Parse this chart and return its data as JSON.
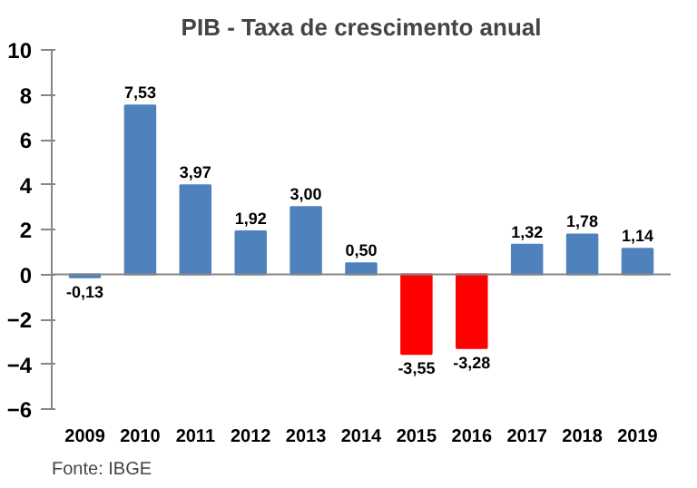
{
  "chart_data": {
    "type": "bar",
    "title": "PIB - Taxa de crescimento anual",
    "categories": [
      "2009",
      "2010",
      "2011",
      "2012",
      "2013",
      "2014",
      "2015",
      "2016",
      "2017",
      "2018",
      "2019"
    ],
    "values": [
      -0.13,
      7.53,
      3.97,
      1.92,
      3.0,
      0.5,
      -3.55,
      -3.28,
      1.32,
      1.78,
      1.14
    ],
    "colors": [
      "#4f81bd",
      "#4f81bd",
      "#4f81bd",
      "#4f81bd",
      "#4f81bd",
      "#4f81bd",
      "#ff0000",
      "#ff0000",
      "#4f81bd",
      "#4f81bd",
      "#4f81bd"
    ],
    "value_labels": [
      "-0,13",
      "7,53",
      "3,97",
      "1,92",
      "3,00",
      "0,50",
      "-3,55",
      "-3,28",
      "1,32",
      "1,78",
      "1,14"
    ],
    "ylim": [
      -6,
      10
    ],
    "yticks": [
      -6,
      -4,
      -2,
      0,
      2,
      4,
      6,
      8,
      10
    ],
    "annotations": [
      "Fonte: IBGE"
    ]
  }
}
